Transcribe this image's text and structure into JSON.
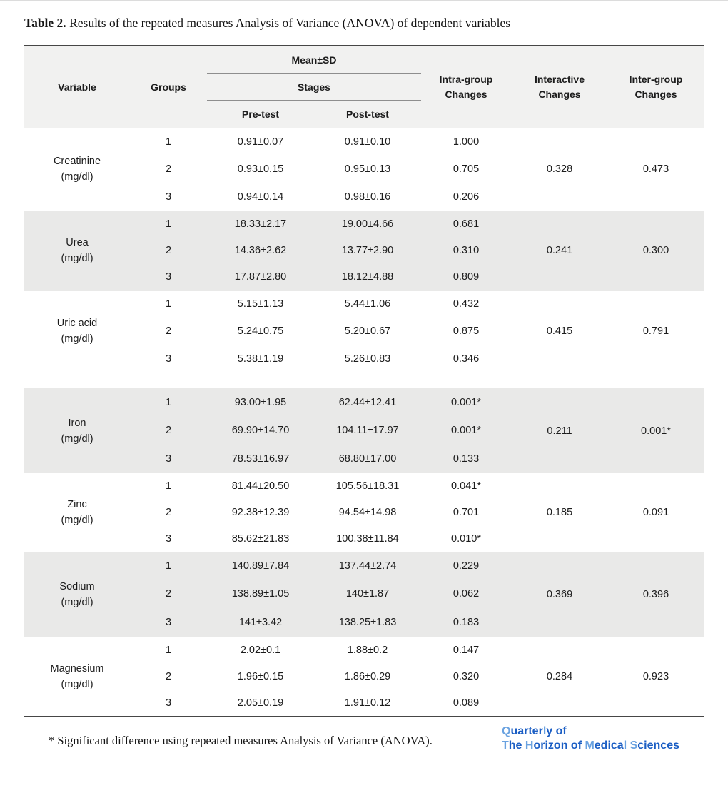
{
  "page": {
    "title_label": "Table 2.",
    "title_rest": " Results of the repeated measures Analysis of Variance (ANOVA) of dependent variables",
    "footnote": "* Significant difference using repeated measures Analysis of Variance (ANOVA)."
  },
  "logo": {
    "light_color": "#6aa2e0",
    "dark_color": "#1b5ec4",
    "line1": [
      {
        "text": "Q",
        "tone": "light"
      },
      {
        "text": "uarter",
        "tone": "dark"
      },
      {
        "text": "l",
        "tone": "light"
      },
      {
        "text": "y of",
        "tone": "dark"
      }
    ],
    "line2": [
      {
        "text": "T",
        "tone": "light"
      },
      {
        "text": "he ",
        "tone": "dark"
      },
      {
        "text": "H",
        "tone": "light"
      },
      {
        "text": "orizon of ",
        "tone": "dark"
      },
      {
        "text": "M",
        "tone": "light"
      },
      {
        "text": "edica",
        "tone": "dark"
      },
      {
        "text": "l",
        "tone": "light"
      },
      {
        "text": " ",
        "tone": "dark"
      },
      {
        "text": "S",
        "tone": "light"
      },
      {
        "text": "ciences",
        "tone": "dark"
      }
    ]
  },
  "table": {
    "colors": {
      "header_bg": "#f1f1f0",
      "band_bg": "#e9e9e8",
      "border": "#464646"
    },
    "header": {
      "variable": "Variable",
      "groups": "Groups",
      "mean_sd": "Mean±SD",
      "stages": "Stages",
      "pre_test": "Pre-test",
      "post_test": "Post-test",
      "intra_l1": "Intra-group",
      "intra_l2": "Changes",
      "interactive_l1": "Interactive",
      "interactive_l2": "Changes",
      "inter_l1": "Inter-group",
      "inter_l2": "Changes"
    },
    "sections": [
      {
        "variable": "Creatinine",
        "unit": "(mg/dl)",
        "shaded": false,
        "rows": [
          {
            "group": "1",
            "pre": "0.91±0.07",
            "post": "0.91±0.10",
            "intra": "1.000"
          },
          {
            "group": "2",
            "pre": "0.93±0.15",
            "post": "0.95±0.13",
            "intra": "0.705"
          },
          {
            "group": "3",
            "pre": "0.94±0.14",
            "post": "0.98±0.16",
            "intra": "0.206"
          }
        ],
        "interactive": "0.328",
        "inter_group": "0.473"
      },
      {
        "variable": "Urea",
        "unit": "(mg/dl)",
        "shaded": true,
        "rows": [
          {
            "group": "1",
            "pre": "18.33±2.17",
            "post": "19.00±4.66",
            "intra": "0.681"
          },
          {
            "group": "2",
            "pre": "14.36±2.62",
            "post": "13.77±2.90",
            "intra": "0.310"
          },
          {
            "group": "3",
            "pre": "17.87±2.80",
            "post": "18.12±4.88",
            "intra": "0.809"
          }
        ],
        "interactive": "0.241",
        "inter_group": "0.300"
      },
      {
        "variable": "Uric acid",
        "unit": "(mg/dl)",
        "shaded": false,
        "rows": [
          {
            "group": "1",
            "pre": "5.15±1.13",
            "post": "5.44±1.06",
            "intra": "0.432"
          },
          {
            "group": "2",
            "pre": "5.24±0.75",
            "post": "5.20±0.67",
            "intra": "0.875"
          },
          {
            "group": "3",
            "pre": "5.38±1.19",
            "post": "5.26±0.83",
            "intra": "0.346"
          }
        ],
        "interactive": "0.415",
        "inter_group": "0.791"
      },
      {
        "variable": "Iron",
        "unit": "(mg/dl)",
        "shaded": true,
        "rows": [
          {
            "group": "1",
            "pre": "93.00±1.95",
            "post": "62.44±12.41",
            "intra": "0.001*"
          },
          {
            "group": "2",
            "pre": "69.90±14.70",
            "post": "104.11±17.97",
            "intra": "0.001*"
          },
          {
            "group": "3",
            "pre": "78.53±16.97",
            "post": "68.80±17.00",
            "intra": "0.133"
          }
        ],
        "interactive": "0.211",
        "inter_group": "0.001*"
      },
      {
        "variable": "Zinc",
        "unit": "(mg/dl)",
        "shaded": false,
        "rows": [
          {
            "group": "1",
            "pre": "81.44±20.50",
            "post": "105.56±18.31",
            "intra": "0.041*"
          },
          {
            "group": "2",
            "pre": "92.38±12.39",
            "post": "94.54±14.98",
            "intra": "0.701"
          },
          {
            "group": "3",
            "pre": "85.62±21.83",
            "post": "100.38±11.84",
            "intra": "0.010*"
          }
        ],
        "interactive": "0.185",
        "inter_group": "0.091"
      },
      {
        "variable": "Sodium",
        "unit": "(mg/dl)",
        "shaded": true,
        "rows": [
          {
            "group": "1",
            "pre": "140.89±7.84",
            "post": "137.44±2.74",
            "intra": "0.229"
          },
          {
            "group": "2",
            "pre": "138.89±1.05",
            "post": "140±1.87",
            "intra": "0.062"
          },
          {
            "group": "3",
            "pre": "141±3.42",
            "post": "138.25±1.83",
            "intra": "0.183"
          }
        ],
        "interactive": "0.369",
        "inter_group": "0.396"
      },
      {
        "variable": "Magnesium",
        "unit": "(mg/dl)",
        "shaded": false,
        "rows": [
          {
            "group": "1",
            "pre": "2.02±0.1",
            "post": "1.88±0.2",
            "intra": "0.147"
          },
          {
            "group": "2",
            "pre": "1.96±0.15",
            "post": "1.86±0.29",
            "intra": "0.320"
          },
          {
            "group": "3",
            "pre": "2.05±0.19",
            "post": "1.91±0.12",
            "intra": "0.089"
          }
        ],
        "interactive": "0.284",
        "inter_group": "0.923"
      }
    ]
  }
}
